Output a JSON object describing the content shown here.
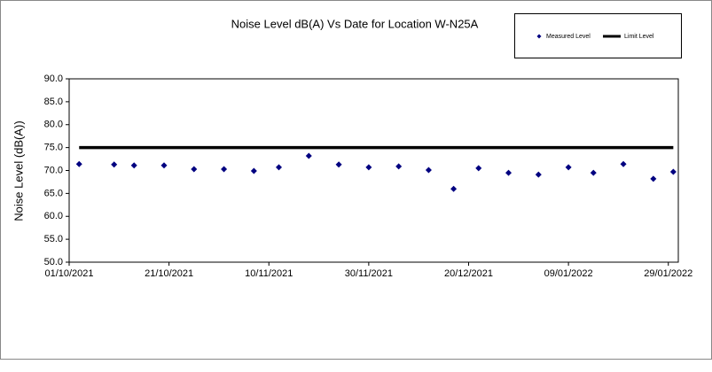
{
  "chart_data": {
    "type": "scatter",
    "title": "Noise Level dB(A) Vs Date for Location W-N25A",
    "y_label": "Noise Level (dB(A))",
    "x": [
      "2021-10-03",
      "2021-10-10",
      "2021-10-14",
      "2021-10-20",
      "2021-10-26",
      "2021-11-01",
      "2021-11-07",
      "2021-11-12",
      "2021-11-18",
      "2021-11-24",
      "2021-11-30",
      "2021-12-06",
      "2021-12-12",
      "2021-12-17",
      "2021-12-22",
      "2021-12-28",
      "2022-01-03",
      "2022-01-09",
      "2022-01-14",
      "2022-01-20",
      "2022-01-26",
      "2022-01-30"
    ],
    "series": [
      {
        "name": "Measured Level",
        "color": "#000080",
        "style": "markers",
        "values": [
          71.4,
          71.3,
          71.1,
          71.1,
          70.3,
          70.3,
          69.9,
          70.7,
          73.2,
          71.3,
          70.7,
          70.9,
          70.1,
          66.0,
          70.5,
          69.5,
          69.1,
          70.7,
          69.5,
          71.4,
          68.2,
          69.7
        ]
      },
      {
        "name": "Limit Level",
        "color": "#000000",
        "style": "line",
        "values": [
          75,
          75,
          75,
          75,
          75,
          75,
          75,
          75,
          75,
          75,
          75,
          75,
          75,
          75,
          75,
          75,
          75,
          75,
          75,
          75,
          75,
          75
        ]
      }
    ],
    "xlim": [
      "2021-10-01",
      "2022-01-31"
    ],
    "xticks": [
      {
        "value": "2021-10-01",
        "label": "01/10/2021"
      },
      {
        "value": "2021-10-21",
        "label": "21/10/2021"
      },
      {
        "value": "2021-11-10",
        "label": "10/11/2021"
      },
      {
        "value": "2021-11-30",
        "label": "30/11/2021"
      },
      {
        "value": "2021-12-20",
        "label": "20/12/2021"
      },
      {
        "value": "2022-01-09",
        "label": "09/01/2022"
      },
      {
        "value": "2022-01-29",
        "label": "29/01/2022"
      }
    ],
    "ylim": [
      50,
      90
    ],
    "yticks": [
      {
        "value": 50,
        "label": "50.0"
      },
      {
        "value": 55,
        "label": "55.0"
      },
      {
        "value": 60,
        "label": "60.0"
      },
      {
        "value": 65,
        "label": "65.0"
      },
      {
        "value": 70,
        "label": "70.0"
      },
      {
        "value": 75,
        "label": "75.0"
      },
      {
        "value": 80,
        "label": "80.0"
      },
      {
        "value": 85,
        "label": "85.0"
      },
      {
        "value": 90,
        "label": "90.0"
      }
    ],
    "grid": false,
    "legend_position": "top-right"
  }
}
